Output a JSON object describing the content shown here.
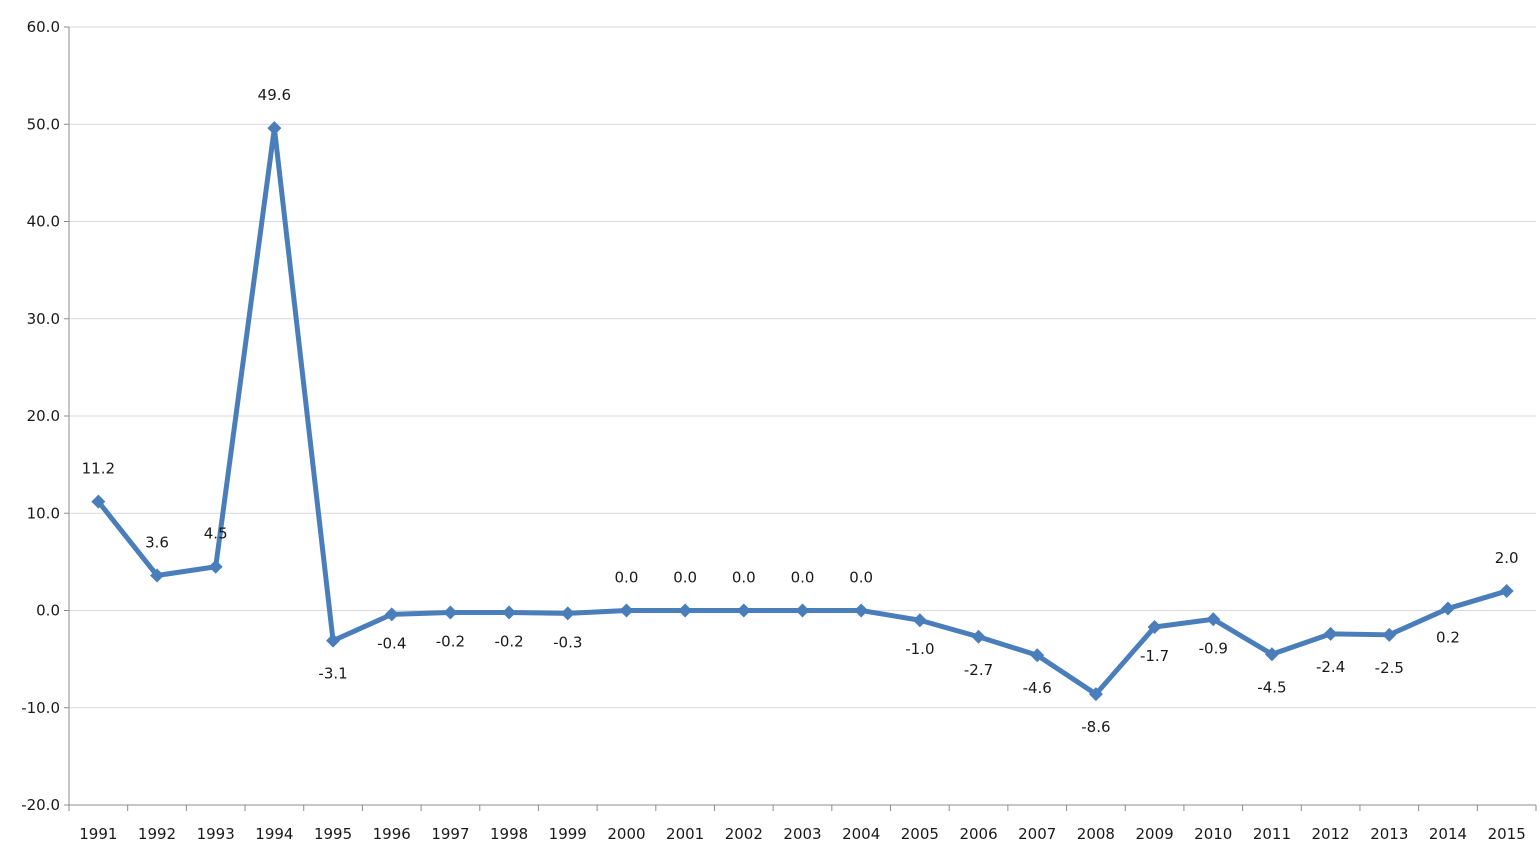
{
  "chart_data": {
    "type": "line",
    "categories": [
      "1991",
      "1992",
      "1993",
      "1994",
      "1995",
      "1996",
      "1997",
      "1998",
      "1999",
      "2000",
      "2001",
      "2002",
      "2003",
      "2004",
      "2005",
      "2006",
      "2007",
      "2008",
      "2009",
      "2010",
      "2011",
      "2012",
      "2013",
      "2014",
      "2015"
    ],
    "series": [
      {
        "values": [
          11.2,
          3.6,
          4.5,
          49.6,
          -3.1,
          -0.4,
          -0.2,
          -0.2,
          -0.3,
          0.0,
          0.0,
          0.0,
          0.0,
          0.0,
          -1.0,
          -2.7,
          -4.6,
          -8.6,
          -1.7,
          -0.9,
          -4.5,
          -2.4,
          -2.5,
          0.2,
          2.0
        ],
        "labels": [
          "11.2",
          "3.6",
          "4.5",
          "49.6",
          "-3.1",
          "-0.4",
          "-0.2",
          "-0.2",
          "-0.3",
          "0.0",
          "0.0",
          "0.0",
          "0.0",
          "0.0",
          "-1.0",
          "-2.7",
          "-4.6",
          "-8.6",
          "-1.7",
          "-0.9",
          "-4.5",
          "-2.4",
          "-2.5",
          "0.2",
          "2.0"
        ],
        "color": "#4a7ebb",
        "marker": "diamond"
      }
    ],
    "ylim": [
      -20,
      60
    ],
    "yticks": [
      "-20.0",
      "-10.0",
      "0.0",
      "10.0",
      "20.0",
      "30.0",
      "40.0",
      "50.0",
      "60.0"
    ],
    "grid": "horizontal",
    "gridColor": "#d9d9d9",
    "axisColor": "#8c8c8c",
    "legend": "none",
    "title": "",
    "xlabel": "",
    "ylabel": ""
  }
}
